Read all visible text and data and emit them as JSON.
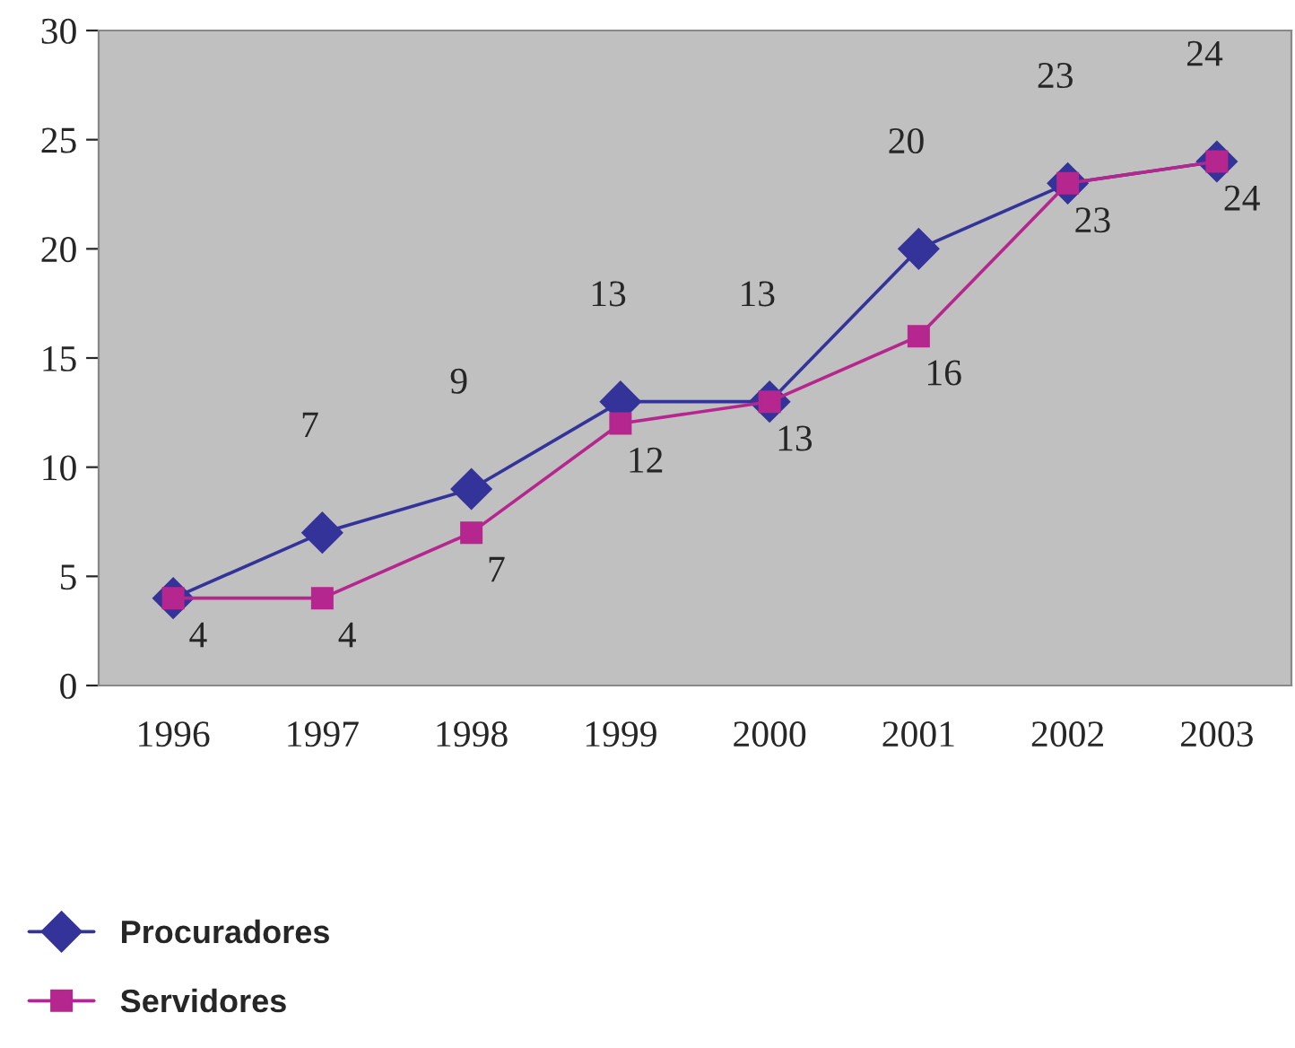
{
  "chart_data": {
    "type": "line",
    "categories": [
      "1996",
      "1997",
      "1998",
      "1999",
      "2000",
      "2001",
      "2002",
      "2003"
    ],
    "series": [
      {
        "name": "Procuradores",
        "color": "#333399",
        "marker": "diamond",
        "values": [
          4,
          7,
          9,
          13,
          13,
          20,
          23,
          24
        ],
        "value_labels": [
          null,
          "7",
          "9",
          "13",
          "13",
          "20",
          "23",
          "24"
        ]
      },
      {
        "name": "Servidores",
        "color": "#b5268f",
        "marker": "square",
        "values": [
          4,
          4,
          7,
          12,
          13,
          16,
          23,
          24
        ],
        "value_labels": [
          "4",
          "4",
          "7",
          "12",
          "13",
          "16",
          "23",
          "24"
        ]
      }
    ],
    "ylim": [
      0,
      30
    ],
    "yticks": [
      0,
      5,
      10,
      15,
      20,
      25,
      30
    ],
    "grid": false,
    "legend": "bottom left"
  }
}
